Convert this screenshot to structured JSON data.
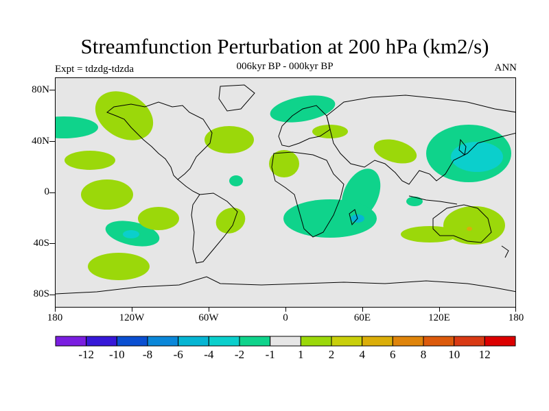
{
  "title": "Streamfunction Perturbation at 200 hPa (km2/s)",
  "subtitle": "006kyr BP - 000kyr BP",
  "left_label": "Expt = tdzdg-tdzda",
  "right_label": "ANN",
  "lat_labels": [
    "80N",
    "40N",
    "0",
    "40S",
    "80S"
  ],
  "lon_labels": [
    "180",
    "120W",
    "60W",
    "0",
    "60E",
    "120E",
    "180"
  ],
  "colorbar": {
    "colors": [
      "#7a1ee0",
      "#3718d8",
      "#0a4fd1",
      "#0a87d9",
      "#06b5d3",
      "#0bcfcc",
      "#0fd38b",
      "#e6e6e6",
      "#9bd80a",
      "#c9cf0b",
      "#dbae09",
      "#df840b",
      "#dc5a0c",
      "#d93a14",
      "#dc0000"
    ],
    "labels": [
      "-12",
      "-10",
      "-8",
      "-6",
      "-4",
      "-2",
      "-1",
      "1",
      "2",
      "4",
      "6",
      "8",
      "10",
      "12"
    ]
  },
  "colors": {
    "neg1": "#0fd38b",
    "neg2": "#0bcfcc",
    "pos1": "#9bd80a",
    "pos2": "#dbae09",
    "background": "#e6e6e6"
  }
}
